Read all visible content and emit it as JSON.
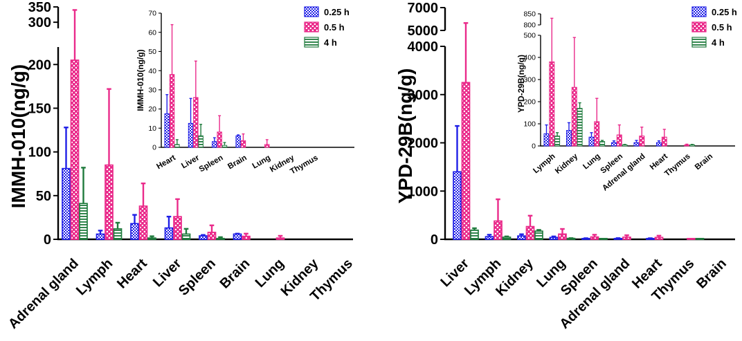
{
  "colors": {
    "0.25 h": "#1f1fe6",
    "0.5 h": "#ea2a8a",
    "4 h": "#1e7a3c"
  },
  "chart_data": [
    {
      "type": "bar",
      "panel": "left-main",
      "ylabel": "IMMH-010(ng/g)",
      "ylim": [
        0,
        350
      ],
      "axis_break": [
        220,
        280
      ],
      "yticks": [
        0,
        50,
        100,
        150,
        200,
        300,
        350
      ],
      "categories": [
        "Adrenal gland",
        "Lymph",
        "Heart",
        "Liver",
        "Spleen",
        "Brain",
        "Lung",
        "Kidney",
        "Thymus"
      ],
      "series": [
        {
          "name": "0.25 h",
          "values": [
            81,
            6,
            18,
            13,
            4,
            6,
            null,
            null,
            null
          ],
          "errors": [
            47,
            4,
            10,
            13,
            1,
            0.5,
            null,
            null,
            null
          ]
        },
        {
          "name": "0.5 h",
          "values": [
            205,
            85,
            38,
            26,
            8,
            3.5,
            1.5,
            null,
            null
          ],
          "errors": [
            135,
            87,
            26,
            20,
            8,
            3,
            2.5,
            null,
            null
          ]
        },
        {
          "name": "4 h",
          "values": [
            41,
            12,
            1.5,
            6,
            1,
            null,
            null,
            null,
            null
          ],
          "errors": [
            41,
            7,
            2,
            6,
            1.5,
            null,
            null,
            null,
            null
          ]
        }
      ]
    },
    {
      "type": "bar",
      "panel": "left-inset",
      "ylabel": "IMMH-010(ng/g)",
      "ylim": [
        0,
        70
      ],
      "yticks": [
        0,
        10,
        20,
        30,
        40,
        50,
        60,
        70
      ],
      "categories": [
        "Heart",
        "Liver",
        "Spleen",
        "Brain",
        "Lung",
        "Kidney",
        "Thymus"
      ],
      "legend": [
        "0.25 h",
        "0.5 h",
        "4 h"
      ],
      "legend_position": "top-right",
      "series": [
        {
          "name": "0.25 h",
          "values": [
            17.5,
            12.5,
            3,
            6,
            null,
            null,
            null
          ],
          "errors": [
            10,
            13,
            2,
            0.5,
            null,
            null,
            null
          ]
        },
        {
          "name": "0.5 h",
          "values": [
            38,
            26,
            8,
            3.5,
            1.5,
            null,
            null
          ],
          "errors": [
            26,
            19,
            8.5,
            3.5,
            2.5,
            null,
            null
          ]
        },
        {
          "name": "4 h",
          "values": [
            1.5,
            6,
            1,
            null,
            null,
            null,
            null
          ],
          "errors": [
            2.5,
            6,
            1.5,
            null,
            null,
            null,
            null
          ]
        }
      ]
    },
    {
      "type": "bar",
      "panel": "right-main",
      "ylabel": "YPD-29B(ng/g)",
      "ylim": [
        0,
        7000
      ],
      "axis_break": [
        4000,
        5000
      ],
      "yticks": [
        0,
        1000,
        2000,
        3000,
        4000,
        5000,
        7000
      ],
      "categories": [
        "Liver",
        "Lymph",
        "Kidney",
        "Lung",
        "Spleen",
        "Adrenal gland",
        "Heart",
        "Thymus",
        "Brain"
      ],
      "series": [
        {
          "name": "0.25 h",
          "values": [
            1400,
            55,
            70,
            40,
            15,
            15,
            15,
            null,
            null
          ],
          "errors": [
            950,
            40,
            35,
            20,
            8,
            10,
            8,
            null,
            null
          ]
        },
        {
          "name": "0.5 h",
          "values": [
            3250,
            380,
            265,
            110,
            50,
            45,
            40,
            5,
            null
          ],
          "errors": [
            2400,
            450,
            225,
            105,
            45,
            40,
            35,
            3,
            null
          ]
        },
        {
          "name": "4 h",
          "values": [
            190,
            45,
            170,
            20,
            5,
            null,
            null,
            5,
            null
          ],
          "errors": [
            40,
            15,
            25,
            5,
            2,
            null,
            null,
            2,
            null
          ]
        }
      ]
    },
    {
      "type": "bar",
      "panel": "right-inset",
      "ylabel": "YPD-29B(ng/g)",
      "ylim": [
        0,
        850
      ],
      "axis_break": [
        500,
        800
      ],
      "yticks": [
        0,
        100,
        200,
        300,
        400,
        500,
        800,
        850
      ],
      "categories": [
        "Lymph",
        "Kidney",
        "Lung",
        "Spleen",
        "Adrenal gland",
        "Heart",
        "Thymus",
        "Brain"
      ],
      "legend": [
        "0.25 h",
        "0.5 h",
        "4 h"
      ],
      "legend_position": "top-right",
      "series": [
        {
          "name": "0.25 h",
          "values": [
            55,
            70,
            40,
            15,
            15,
            15,
            null,
            null
          ],
          "errors": [
            40,
            35,
            20,
            8,
            10,
            8,
            null,
            null
          ]
        },
        {
          "name": "0.5 h",
          "values": [
            380,
            265,
            110,
            50,
            45,
            40,
            5,
            null
          ],
          "errors": [
            450,
            225,
            105,
            45,
            40,
            35,
            3,
            null
          ]
        },
        {
          "name": "4 h",
          "values": [
            45,
            170,
            20,
            5,
            null,
            null,
            5,
            null
          ],
          "errors": [
            15,
            25,
            5,
            2,
            null,
            null,
            2,
            null
          ]
        }
      ]
    }
  ]
}
